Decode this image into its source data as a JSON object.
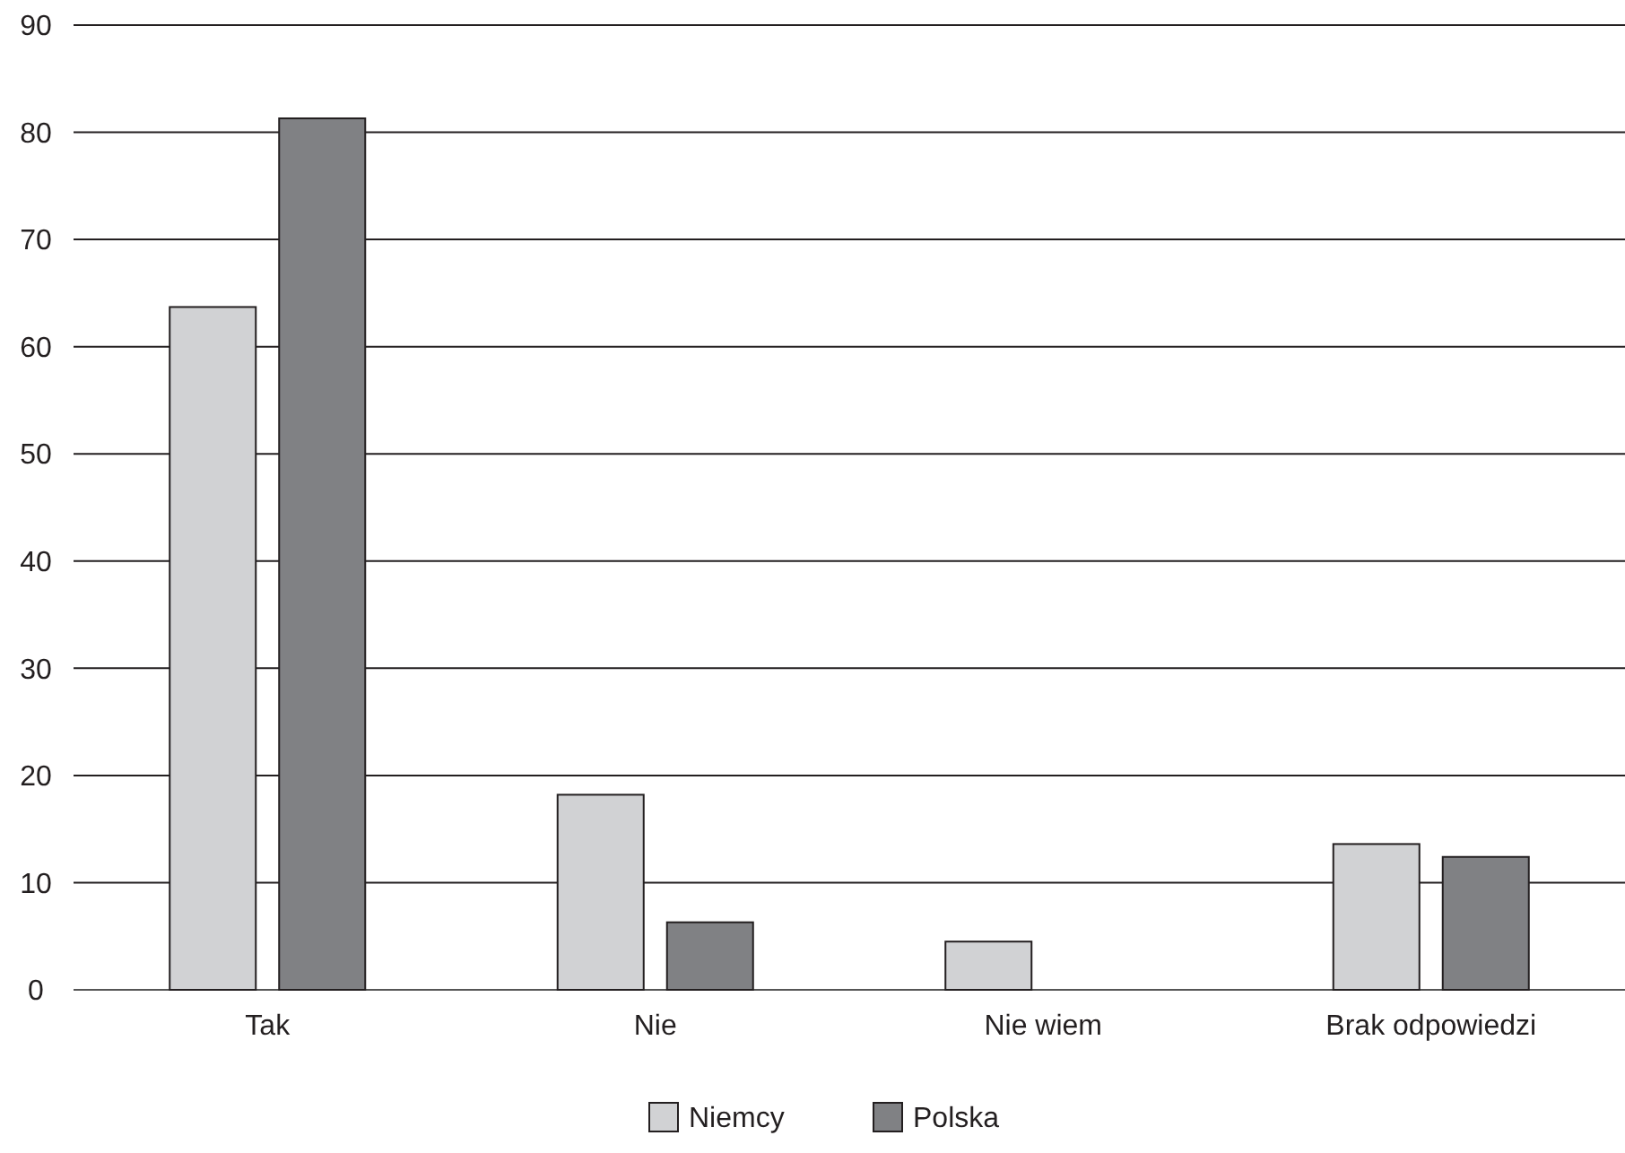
{
  "chart_data": {
    "type": "bar",
    "categories": [
      "Tak",
      "Nie",
      "Nie wiem",
      "Brak odpowiedzi"
    ],
    "series": [
      {
        "name": "Niemcy",
        "color": "#d1d2d4",
        "values": [
          63.7,
          18.2,
          4.5,
          13.6
        ]
      },
      {
        "name": "Polska",
        "color": "#808184",
        "values": [
          81.3,
          6.3,
          null,
          12.4
        ]
      }
    ],
    "ylim": [
      0,
      90
    ],
    "yticks": [
      0,
      10,
      20,
      30,
      40,
      50,
      60,
      70,
      80,
      90
    ],
    "grid": "y",
    "legend": "bottom"
  }
}
